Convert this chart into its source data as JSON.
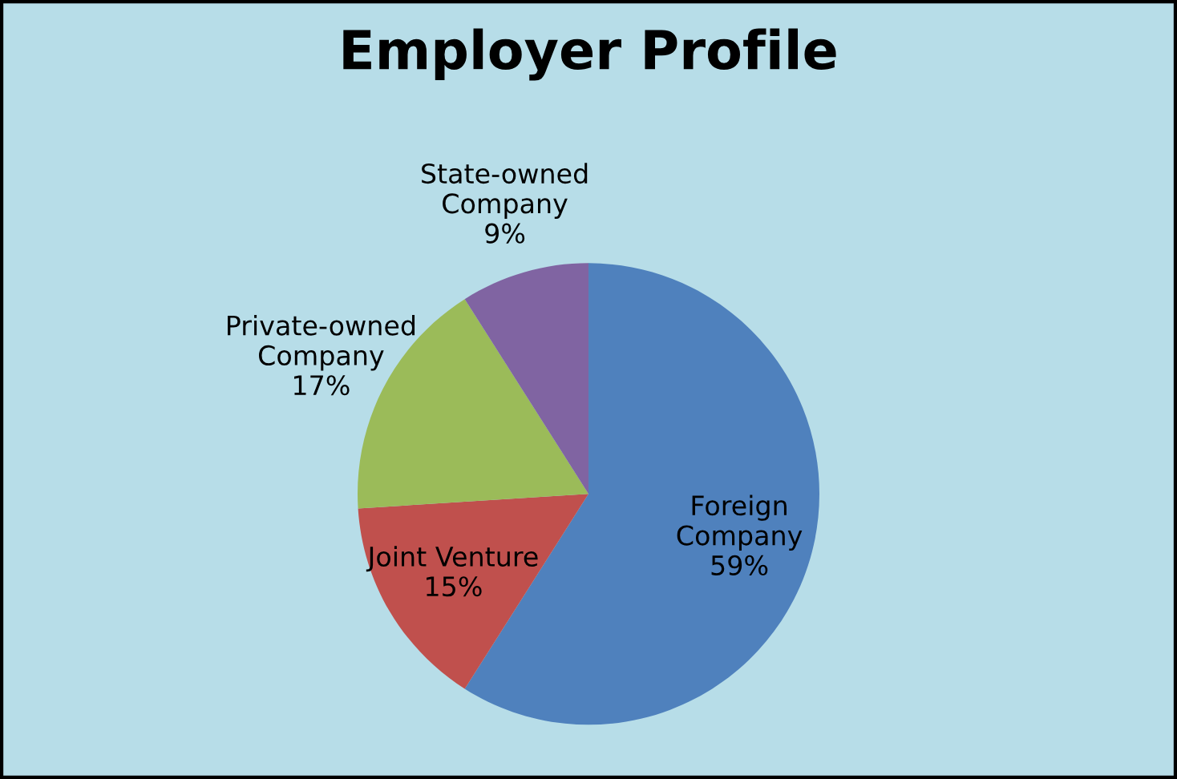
{
  "chart_data": {
    "type": "pie",
    "title": "Employer Profile",
    "categories": [
      "Foreign\nCompany",
      "Joint Venture",
      "Private-owned\nCompany",
      "State-owned\nCompany"
    ],
    "values": [
      59,
      15,
      17,
      9
    ],
    "value_labels": [
      "59%",
      "15%",
      "17%",
      "9%"
    ],
    "colors": [
      "#4f81bd",
      "#c0504d",
      "#9bbb59",
      "#8064a2"
    ],
    "legend": false
  }
}
